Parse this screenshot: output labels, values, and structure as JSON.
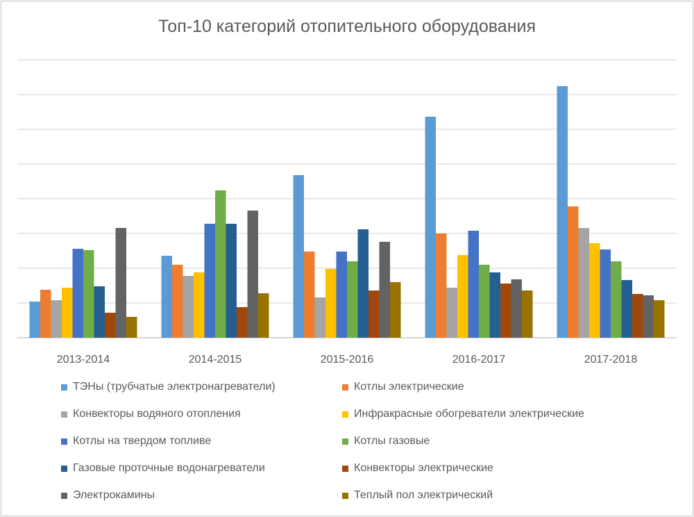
{
  "chart_data": {
    "type": "bar",
    "title": "Топ-10 категорий отопительного оборудования",
    "xlabel": "",
    "ylabel": "",
    "ylim": [
      0,
      8
    ],
    "grid": true,
    "y_tick_labels_shown": false,
    "legend_placement": "bottom",
    "categories": [
      "2013-2014",
      "2014-2015",
      "2015-2016",
      "2016-2017",
      "2017-2018"
    ],
    "series": [
      {
        "name": "ТЭНы (трубчатые электронагреватели)",
        "color": "#5B9BD5",
        "values": [
          1.04,
          2.36,
          4.68,
          6.36,
          7.24
        ]
      },
      {
        "name": "Котлы электрические",
        "color": "#ED7D31",
        "values": [
          1.38,
          2.1,
          2.48,
          3.0,
          3.78
        ]
      },
      {
        "name": "Конвекторы водяного отопления",
        "color": "#A5A5A5",
        "values": [
          1.08,
          1.78,
          1.16,
          1.44,
          3.16
        ]
      },
      {
        "name": "Инфракрасные обогреватели электрические",
        "color": "#FFC000",
        "values": [
          1.44,
          1.88,
          1.98,
          2.38,
          2.72
        ]
      },
      {
        "name": "Котлы на твердом топливе",
        "color": "#4472C4",
        "values": [
          2.56,
          3.28,
          2.48,
          3.08,
          2.54
        ]
      },
      {
        "name": "Котлы газовые",
        "color": "#70AD47",
        "values": [
          2.52,
          4.24,
          2.2,
          2.1,
          2.2
        ]
      },
      {
        "name": "Газовые проточные водонагреватели",
        "color": "#255E91",
        "values": [
          1.48,
          3.28,
          3.12,
          1.88,
          1.66
        ]
      },
      {
        "name": "Конвекторы электрические",
        "color": "#9E480E",
        "values": [
          0.72,
          0.88,
          1.36,
          1.56,
          1.26
        ]
      },
      {
        "name": "Электрокамины",
        "color": "#636363",
        "values": [
          3.16,
          3.66,
          2.76,
          1.68,
          1.22
        ]
      },
      {
        "name": "Теплый пол электрический",
        "color": "#997300",
        "values": [
          0.6,
          1.28,
          1.6,
          1.36,
          1.08
        ]
      }
    ]
  }
}
